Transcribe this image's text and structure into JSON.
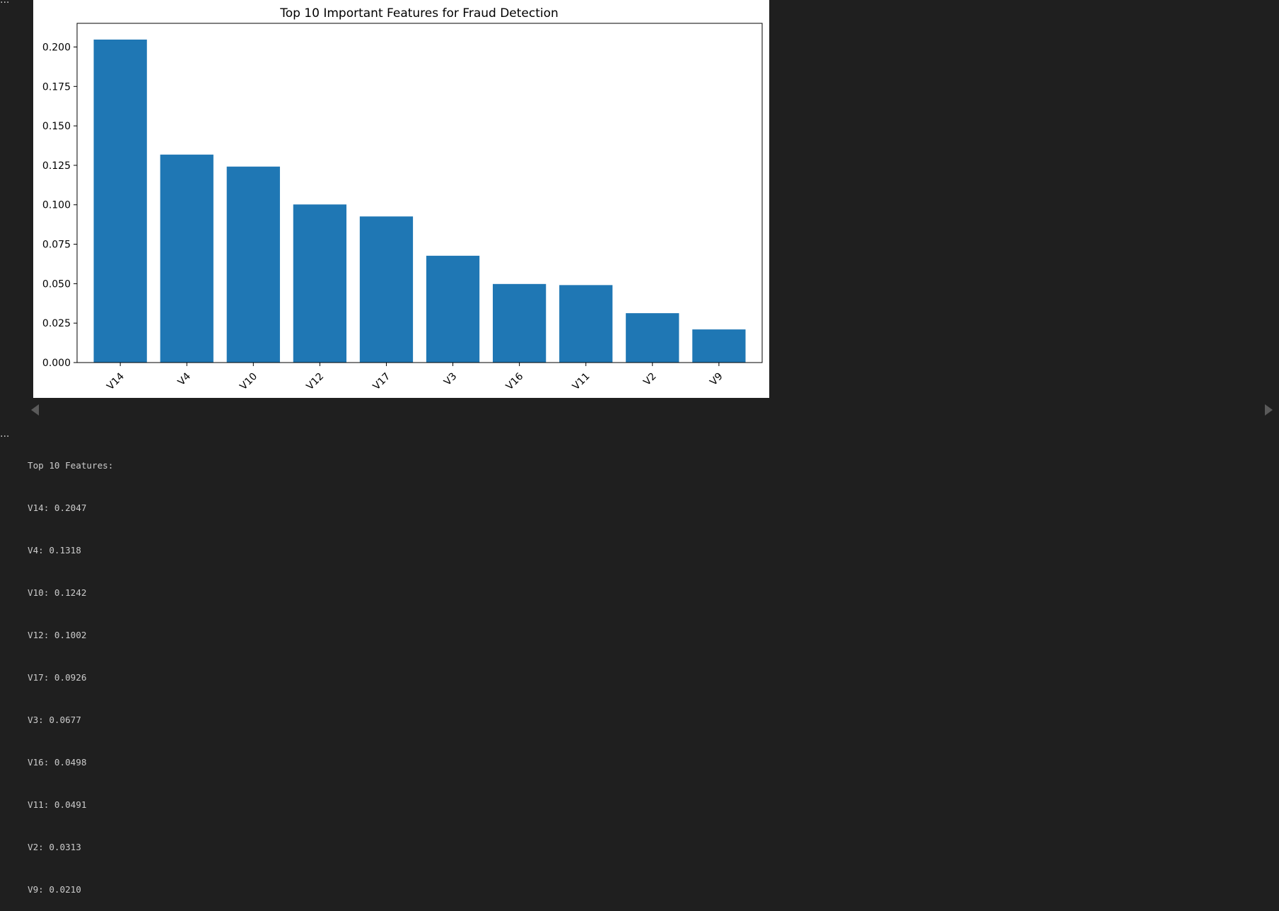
{
  "cells": {
    "gutter_glyph": "···"
  },
  "chart_data": {
    "type": "bar",
    "title": "Top 10 Important Features for Fraud Detection",
    "xlabel": "",
    "ylabel": "",
    "categories": [
      "V14",
      "V4",
      "V10",
      "V12",
      "V17",
      "V3",
      "V16",
      "V11",
      "V2",
      "V9"
    ],
    "values": [
      0.2047,
      0.1318,
      0.1242,
      0.1002,
      0.0926,
      0.0677,
      0.0498,
      0.0491,
      0.0313,
      0.021
    ],
    "ylim": [
      0,
      0.215
    ],
    "yticks": [
      "0.000",
      "0.025",
      "0.050",
      "0.075",
      "0.100",
      "0.125",
      "0.150",
      "0.175",
      "0.200"
    ],
    "ytick_values": [
      0,
      0.025,
      0.05,
      0.075,
      0.1,
      0.125,
      0.15,
      0.175,
      0.2
    ],
    "x_tick_rotation": 45,
    "grid": false,
    "bar_color": "#1f77b4"
  },
  "output": {
    "heading": "Top 10 Features:",
    "lines": [
      "V14: 0.2047",
      "V4: 0.1318",
      "V10: 0.1242",
      "V12: 0.1002",
      "V17: 0.0926",
      "V3: 0.0677",
      "V16: 0.0498",
      "V11: 0.0491",
      "V2: 0.0313",
      "V9: 0.0210"
    ]
  }
}
